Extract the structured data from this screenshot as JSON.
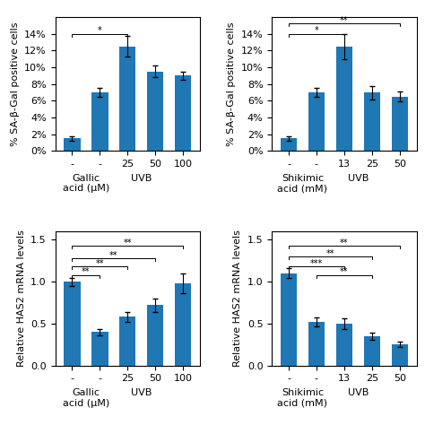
{
  "chart_data": [
    {
      "type": "bar",
      "categories": [
        "-",
        "-",
        "25",
        "50",
        "100"
      ],
      "values": [
        1.5,
        7.0,
        12.5,
        9.5,
        9.0
      ],
      "errors": [
        0.3,
        0.5,
        1.2,
        0.7,
        0.5
      ],
      "y_label": "% SA-β-Gal positive cells",
      "x_label": "Gallic\nacid (μM)",
      "ylim": [
        0,
        16
      ],
      "yticks": [
        {
          "value": 0,
          "label": "0%"
        },
        {
          "value": 2,
          "label": "2%"
        },
        {
          "value": 4,
          "label": "4%"
        },
        {
          "value": 6,
          "label": "6%"
        },
        {
          "value": 8,
          "label": "8%"
        },
        {
          "value": 10,
          "label": "10%"
        },
        {
          "value": 12,
          "label": "12%"
        },
        {
          "value": 14,
          "label": "14%"
        }
      ],
      "annotations": [
        {
          "text": "UVB"
        },
        {
          "text": "*",
          "x": [
            0,
            2
          ],
          "y": 14.0
        }
      ]
    },
    {
      "type": "bar",
      "categories": [
        "-",
        "-",
        "13",
        "25",
        "50"
      ],
      "values": [
        1.5,
        7.0,
        12.5,
        7.0,
        6.5
      ],
      "errors": [
        0.3,
        0.5,
        1.5,
        0.8,
        0.6
      ],
      "y_label": "% SA-β-Gal positive cells",
      "x_label": "Shikimic\nacid (mM)",
      "ylim": [
        0,
        16
      ],
      "yticks": [
        {
          "value": 0,
          "label": "0%"
        },
        {
          "value": 2,
          "label": "2%"
        },
        {
          "value": 4,
          "label": "4%"
        },
        {
          "value": 6,
          "label": "6%"
        },
        {
          "value": 8,
          "label": "8%"
        },
        {
          "value": 10,
          "label": "10%"
        },
        {
          "value": 12,
          "label": "12%"
        },
        {
          "value": 14,
          "label": "14%"
        }
      ],
      "annotations": [
        {
          "text": "UVB"
        },
        {
          "text": "*",
          "x": [
            0,
            2
          ],
          "y": 14.0
        },
        {
          "text": "**",
          "x": [
            0,
            4
          ],
          "y": 15.2
        }
      ]
    },
    {
      "type": "bar",
      "categories": [
        "-",
        "-",
        "25",
        "50",
        "100"
      ],
      "values": [
        1.0,
        0.4,
        0.58,
        0.72,
        0.98
      ],
      "errors": [
        0.05,
        0.04,
        0.06,
        0.08,
        0.12
      ],
      "y_label": "Relative HAS2 mRNA levels",
      "x_label": "Gallic\nacid (μM)",
      "ylim": [
        0,
        1.6
      ],
      "yticks": [
        {
          "value": 0.0,
          "label": "0.0"
        },
        {
          "value": 0.5,
          "label": "0.5"
        },
        {
          "value": 1.0,
          "label": "1.0"
        },
        {
          "value": 1.5,
          "label": "1.5"
        }
      ],
      "annotations": [
        {
          "text": "UVB"
        },
        {
          "text": "**",
          "x": [
            0,
            1
          ],
          "y": 1.08
        },
        {
          "text": "**",
          "x": [
            0,
            2
          ],
          "y": 1.18
        },
        {
          "text": "**",
          "x": [
            0,
            3
          ],
          "y": 1.28
        },
        {
          "text": "**",
          "x": [
            0,
            4
          ],
          "y": 1.43
        }
      ]
    },
    {
      "type": "bar",
      "categories": [
        "-",
        "-",
        "13",
        "25",
        "50"
      ],
      "values": [
        1.1,
        0.52,
        0.5,
        0.35,
        0.25
      ],
      "errors": [
        0.06,
        0.05,
        0.06,
        0.04,
        0.03
      ],
      "y_label": "Relative HAS2 mRNA levels",
      "x_label": "Shikimic\nacid (mM)",
      "ylim": [
        0,
        1.6
      ],
      "yticks": [
        {
          "value": 0.0,
          "label": "0.0"
        },
        {
          "value": 0.5,
          "label": "0.5"
        },
        {
          "value": 1.0,
          "label": "1.0"
        },
        {
          "value": 1.5,
          "label": "1.5"
        }
      ],
      "annotations": [
        {
          "text": "UVB"
        },
        {
          "text": "***",
          "x": [
            0,
            2
          ],
          "y": 1.18
        },
        {
          "text": "**",
          "x": [
            1,
            3
          ],
          "y": 1.08
        },
        {
          "text": "**",
          "x": [
            0,
            3
          ],
          "y": 1.3
        },
        {
          "text": "**",
          "x": [
            0,
            4
          ],
          "y": 1.43
        }
      ]
    }
  ]
}
